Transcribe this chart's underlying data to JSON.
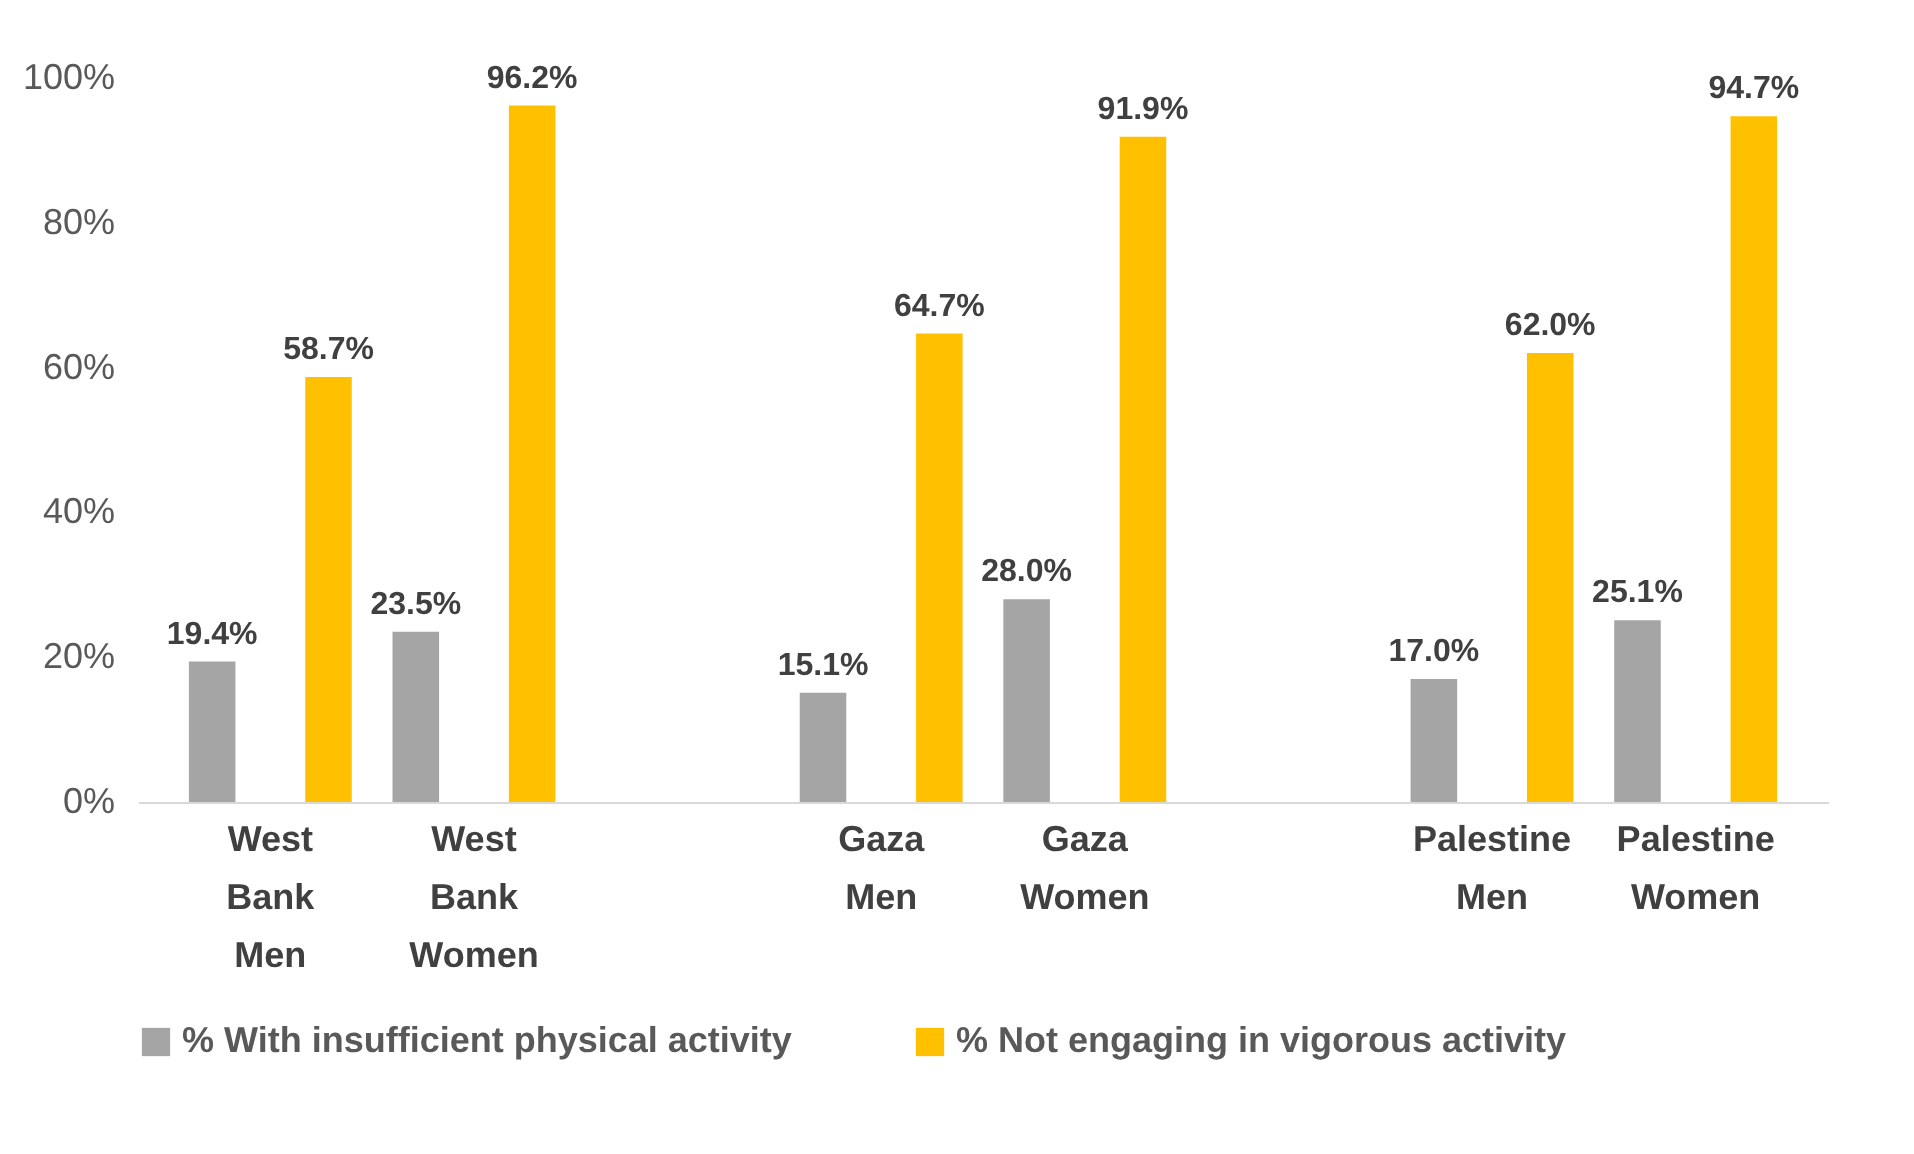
{
  "chart_data": {
    "type": "bar",
    "categories": [
      "West Bank Men",
      "West Bank Women",
      null,
      "Gaza Men",
      "Gaza Women",
      null,
      "Palestine Men",
      "Palestine Women"
    ],
    "series": [
      {
        "name": "% With insufficient physical activity",
        "color": "#a5a5a5",
        "values": [
          19.4,
          23.5,
          null,
          15.1,
          28.0,
          null,
          17.0,
          25.1
        ],
        "value_labels": [
          "19.4%",
          "23.5%",
          null,
          "15.1%",
          "28.0%",
          null,
          "17.0%",
          "25.1%"
        ]
      },
      {
        "name": "% Not engaging in vigorous activity",
        "color": "#ffc000",
        "values": [
          58.7,
          96.2,
          null,
          64.7,
          91.9,
          null,
          62.0,
          94.7
        ],
        "value_labels": [
          "58.7%",
          "96.2%",
          null,
          "64.7%",
          "91.9%",
          null,
          "62.0%",
          "94.7%"
        ]
      }
    ],
    "ylim": [
      0,
      100
    ],
    "yticks": [
      {
        "value": 0,
        "label": "0%"
      },
      {
        "value": 20,
        "label": "20%"
      },
      {
        "value": 40,
        "label": "40%"
      },
      {
        "value": 60,
        "label": "60%"
      },
      {
        "value": 80,
        "label": "80%"
      },
      {
        "value": 100,
        "label": "100%"
      }
    ],
    "grid": false,
    "legend": "bottom"
  }
}
